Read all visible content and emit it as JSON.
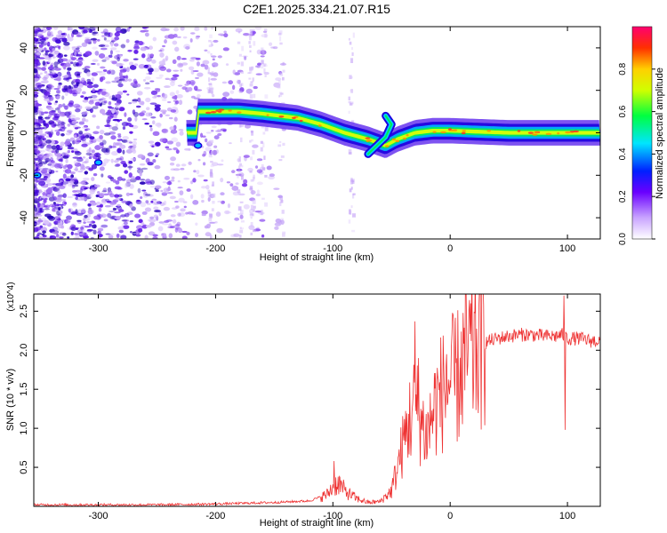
{
  "title": "C2E1.2025.334.21.07.R15",
  "spectrogram": {
    "type": "heatmap",
    "xlabel": "Height of straight line (km)",
    "ylabel": "Frequency (Hz)",
    "xlim": [
      -355,
      128
    ],
    "ylim": [
      -50,
      50
    ],
    "xticks": [
      -300,
      -200,
      -100,
      0,
      100
    ],
    "yticks": [
      -40,
      -20,
      0,
      20,
      40
    ],
    "colorbar": {
      "label": "Normalized spectral amplitude",
      "range": [
        0,
        1
      ],
      "ticks": [
        "0.0",
        "0.2",
        "0.4",
        "0.6",
        "0.8"
      ]
    },
    "ridge": [
      {
        "x": -215,
        "y": 10
      },
      {
        "x": -180,
        "y": 10
      },
      {
        "x": -160,
        "y": 9
      },
      {
        "x": -130,
        "y": 7
      },
      {
        "x": -110,
        "y": 4
      },
      {
        "x": -90,
        "y": 0
      },
      {
        "x": -70,
        "y": -3
      },
      {
        "x": -55,
        "y": -6
      },
      {
        "x": -45,
        "y": -3
      },
      {
        "x": -30,
        "y": 0
      },
      {
        "x": -15,
        "y": 1
      },
      {
        "x": 0,
        "y": 1
      },
      {
        "x": 50,
        "y": 0
      },
      {
        "x": 128,
        "y": 0
      }
    ],
    "branch": [
      {
        "x": -70,
        "y": -10
      },
      {
        "x": -55,
        "y": -2
      },
      {
        "x": -50,
        "y": 4
      },
      {
        "x": -55,
        "y": 8
      }
    ]
  },
  "snr_chart": {
    "type": "line",
    "xlabel": "Height of straight line (km)",
    "ylabel": "SNR (10 * v/v)",
    "scale_label": "(x10^4)",
    "xlim": [
      -355,
      128
    ],
    "ylim": [
      0,
      2.72
    ],
    "xticks": [
      -300,
      -200,
      -100,
      0,
      100
    ],
    "yticks": [
      "0.5",
      "1.0",
      "1.5",
      "2.0",
      "2.5"
    ],
    "color": "#ee3333",
    "x": [
      -355,
      -250,
      -200,
      -150,
      -120,
      -105,
      -100,
      -95,
      -90,
      -80,
      -70,
      -60,
      -50,
      -45,
      -40,
      -35,
      -30,
      -25,
      -20,
      -15,
      -10,
      -5,
      0,
      5,
      10,
      15,
      20,
      25,
      30,
      40,
      50,
      60,
      70,
      80,
      90,
      95,
      100,
      110,
      120,
      128
    ],
    "y": [
      0.02,
      0.02,
      0.03,
      0.05,
      0.07,
      0.15,
      0.25,
      0.3,
      0.2,
      0.1,
      0.05,
      0.06,
      0.2,
      0.5,
      0.8,
      1.1,
      1.3,
      1.1,
      0.9,
      1.2,
      1.4,
      1.5,
      1.6,
      1.6,
      1.8,
      1.95,
      2.0,
      2.05,
      2.1,
      2.15,
      2.18,
      2.2,
      2.2,
      2.18,
      2.18,
      2.2,
      2.15,
      2.15,
      2.12,
      2.12
    ],
    "spikes": [
      {
        "x": -99,
        "y": 0.58
      },
      {
        "x": -30,
        "y": 2.37
      },
      {
        "x": -27,
        "y": 1.9
      },
      {
        "x": -3,
        "y": 1.95
      },
      {
        "x": 10,
        "y": 1.4
      },
      {
        "x": 97,
        "y": 2.7
      },
      {
        "x": 98,
        "y": 0.98
      }
    ]
  }
}
